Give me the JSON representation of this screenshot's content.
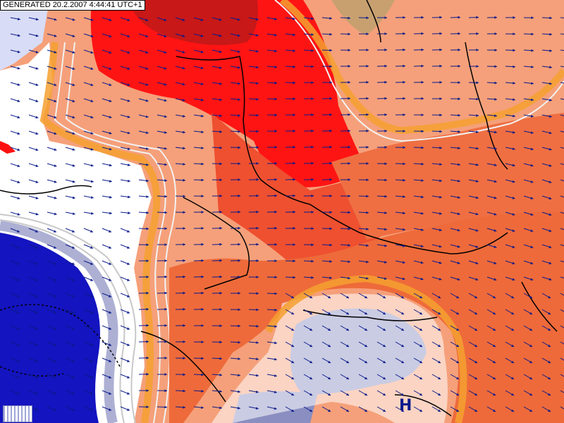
{
  "header": {
    "generated_label": "GENERATED 20.2.2007 4:44:41 UTC+1"
  },
  "pressure_centers": [
    {
      "label": "H"
    }
  ],
  "colors": {
    "ocean_light": "#d8dcf6",
    "white_zone": "#ffffff",
    "light_orange": "#f5a07a",
    "mid_orange": "#ee6a3a",
    "red": "#e83328",
    "bright_red": "#ff1010",
    "dark_red": "#c81818",
    "deep_blue": "#1414c0",
    "slate_blue": "#8a8ec0",
    "land_tan": "#c8a070",
    "orange_band": "#f5a030",
    "contour_white": "#f2f2f2",
    "contour_grey": "#c8c8c8",
    "border_black": "#000000",
    "arrow_navy": "#0a1a8a"
  },
  "legend": {
    "icon": "grid-legend-icon"
  }
}
